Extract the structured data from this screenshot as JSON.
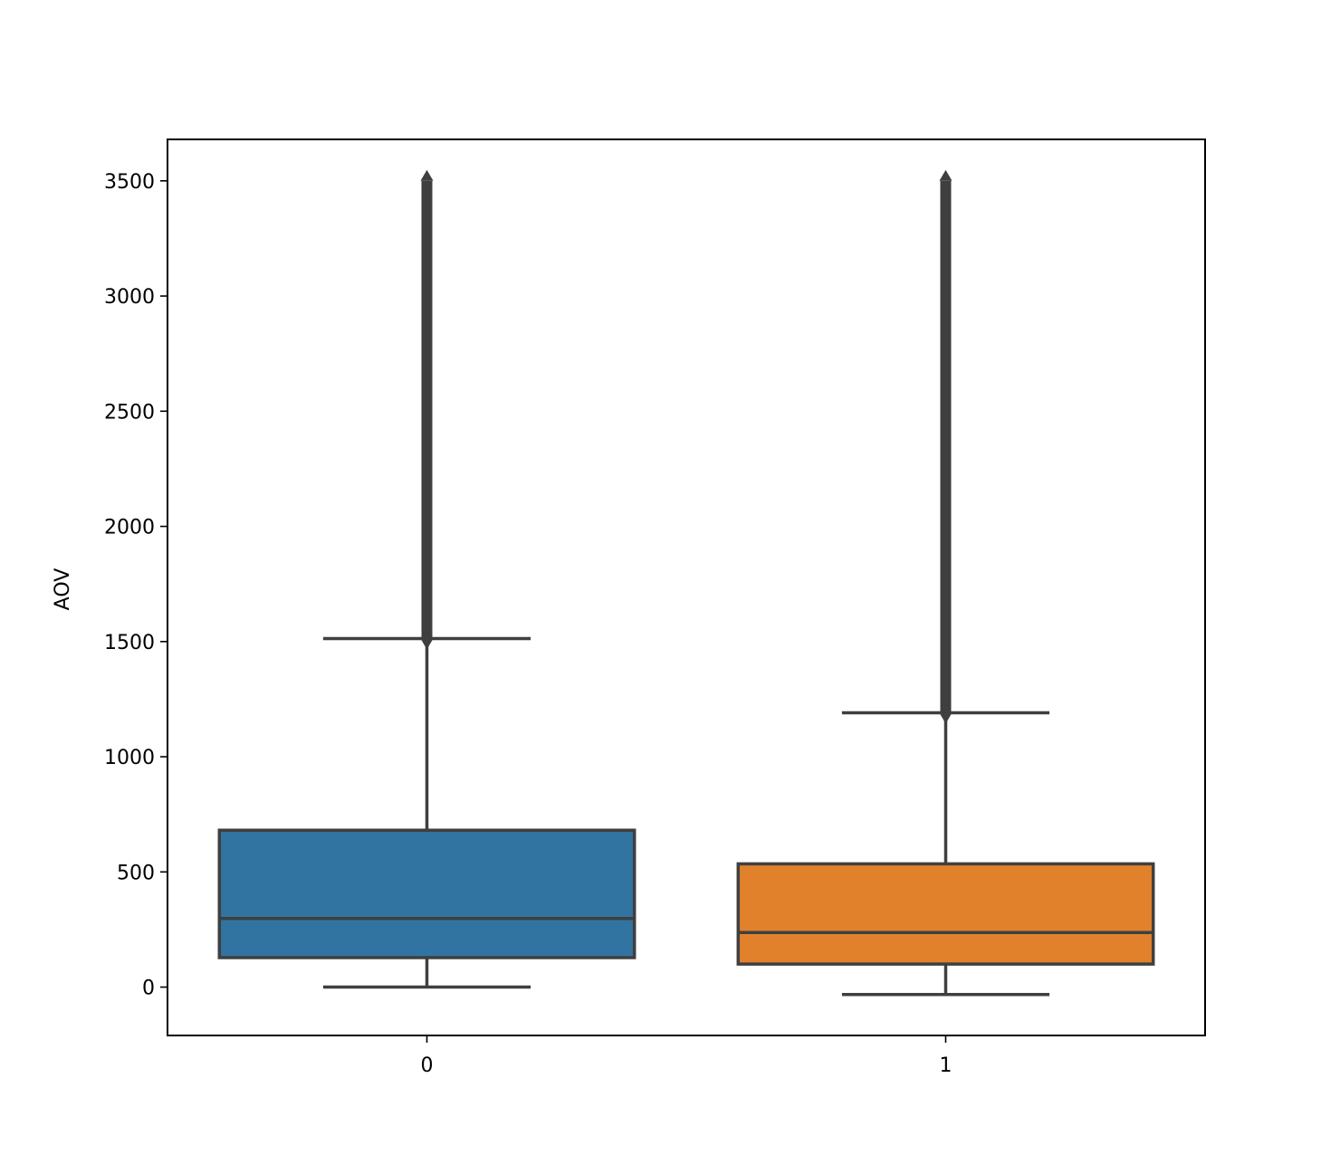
{
  "chart_data": {
    "type": "box",
    "title": "",
    "xlabel": "",
    "ylabel": "AOV",
    "categories": [
      "0",
      "1"
    ],
    "yticks": [
      0,
      500,
      1000,
      1500,
      2000,
      2500,
      3000,
      3500
    ],
    "ylim": [
      -210,
      3680
    ],
    "grid": false,
    "boxes": [
      {
        "category": "0",
        "color": "#3274a1",
        "whisker_low": 0,
        "q1": 128,
        "median": 298,
        "q3": 681,
        "whisker_high": 1513,
        "outliers_from": 1513,
        "outliers_to": 3500
      },
      {
        "category": "1",
        "color": "#e1812c",
        "whisker_low": -32,
        "q1": 100,
        "median": 237,
        "q3": 535,
        "whisker_high": 1191,
        "outliers_from": 1191,
        "outliers_to": 3500
      }
    ],
    "line_color": "#3f3f3f"
  }
}
